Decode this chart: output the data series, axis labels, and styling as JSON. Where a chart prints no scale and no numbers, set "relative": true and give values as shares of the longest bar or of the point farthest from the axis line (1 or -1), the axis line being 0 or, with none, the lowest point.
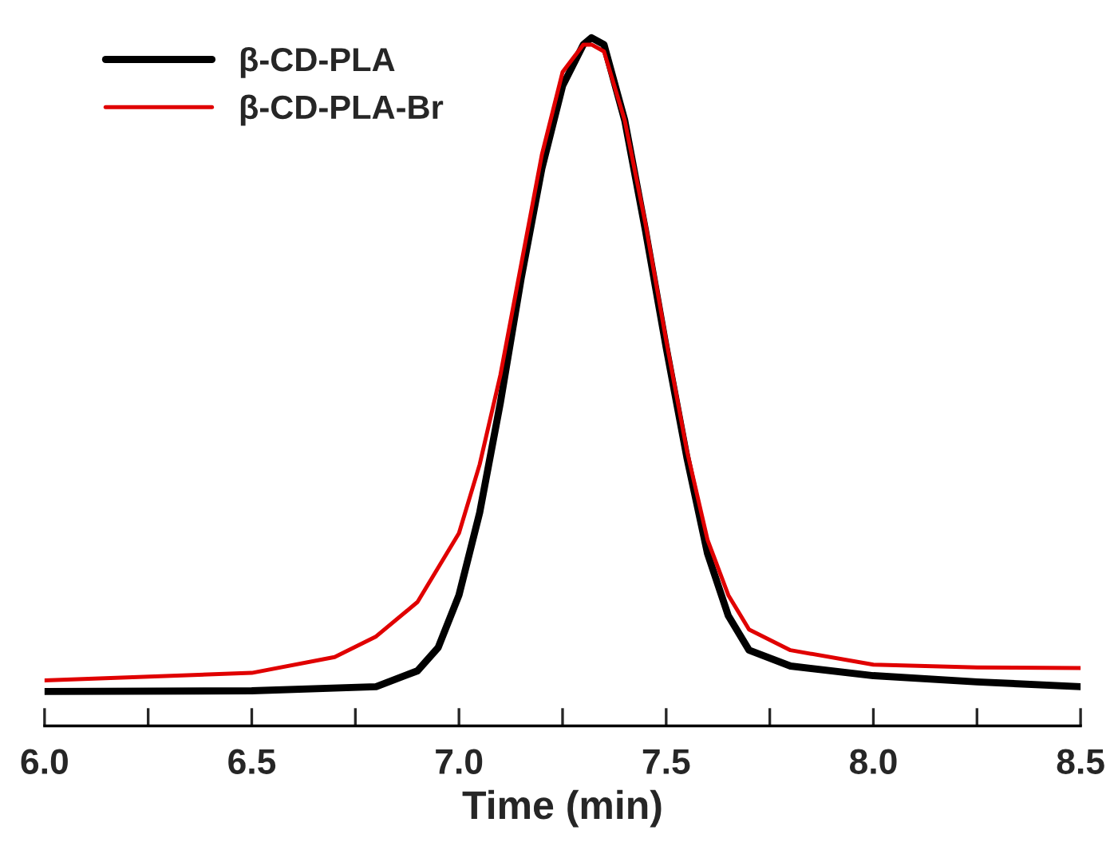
{
  "chart_data": {
    "type": "line",
    "xlabel": "Time (min)",
    "relative": true,
    "xlim": [
      6.0,
      8.5
    ],
    "xticks": [
      {
        "value": 6,
        "label": "6.0"
      },
      {
        "value": 6.25,
        "label": null
      },
      6.5,
      {
        "value": 6.75,
        "label": null
      },
      {
        "value": 7,
        "label": "7.0"
      },
      {
        "value": 7.25,
        "label": null
      },
      7.5,
      {
        "value": 7.75,
        "label": null
      },
      {
        "value": 8,
        "label": "8.0"
      },
      {
        "value": 8.25,
        "label": null
      },
      8.5
    ],
    "tick_labels": "x",
    "grid": false,
    "legend": "top left",
    "marker": "none",
    "line_style": "solid",
    "series": [
      {
        "name": "β-CD-PLA",
        "color": "#000000",
        "x": [
          6.0,
          6.5,
          6.8,
          6.9,
          6.95,
          7.0,
          7.05,
          7.1,
          7.15,
          7.2,
          7.25,
          7.3,
          7.32,
          7.35,
          7.4,
          7.45,
          7.5,
          7.55,
          7.6,
          7.65,
          7.7,
          7.8,
          8.0,
          8.25,
          8.5
        ],
        "values": [
          0.05,
          0.051,
          0.057,
          0.08,
          0.114,
          0.19,
          0.31,
          0.47,
          0.65,
          0.81,
          0.93,
          0.99,
          1.0,
          0.99,
          0.88,
          0.72,
          0.55,
          0.39,
          0.25,
          0.16,
          0.11,
          0.087,
          0.073,
          0.064,
          0.057
        ]
      },
      {
        "name": "β-CD-PLA-Br",
        "color": "#e00000",
        "x": [
          6.0,
          6.5,
          6.7,
          6.8,
          6.9,
          7.0,
          7.05,
          7.1,
          7.15,
          7.2,
          7.25,
          7.3,
          7.32,
          7.35,
          7.4,
          7.45,
          7.5,
          7.55,
          7.6,
          7.65,
          7.7,
          7.8,
          8.0,
          8.25,
          8.5
        ],
        "values": [
          0.066,
          0.077,
          0.1,
          0.13,
          0.18,
          0.28,
          0.38,
          0.51,
          0.67,
          0.83,
          0.95,
          0.99,
          0.99,
          0.98,
          0.88,
          0.73,
          0.56,
          0.4,
          0.27,
          0.19,
          0.14,
          0.11,
          0.089,
          0.085,
          0.084
        ]
      }
    ]
  }
}
